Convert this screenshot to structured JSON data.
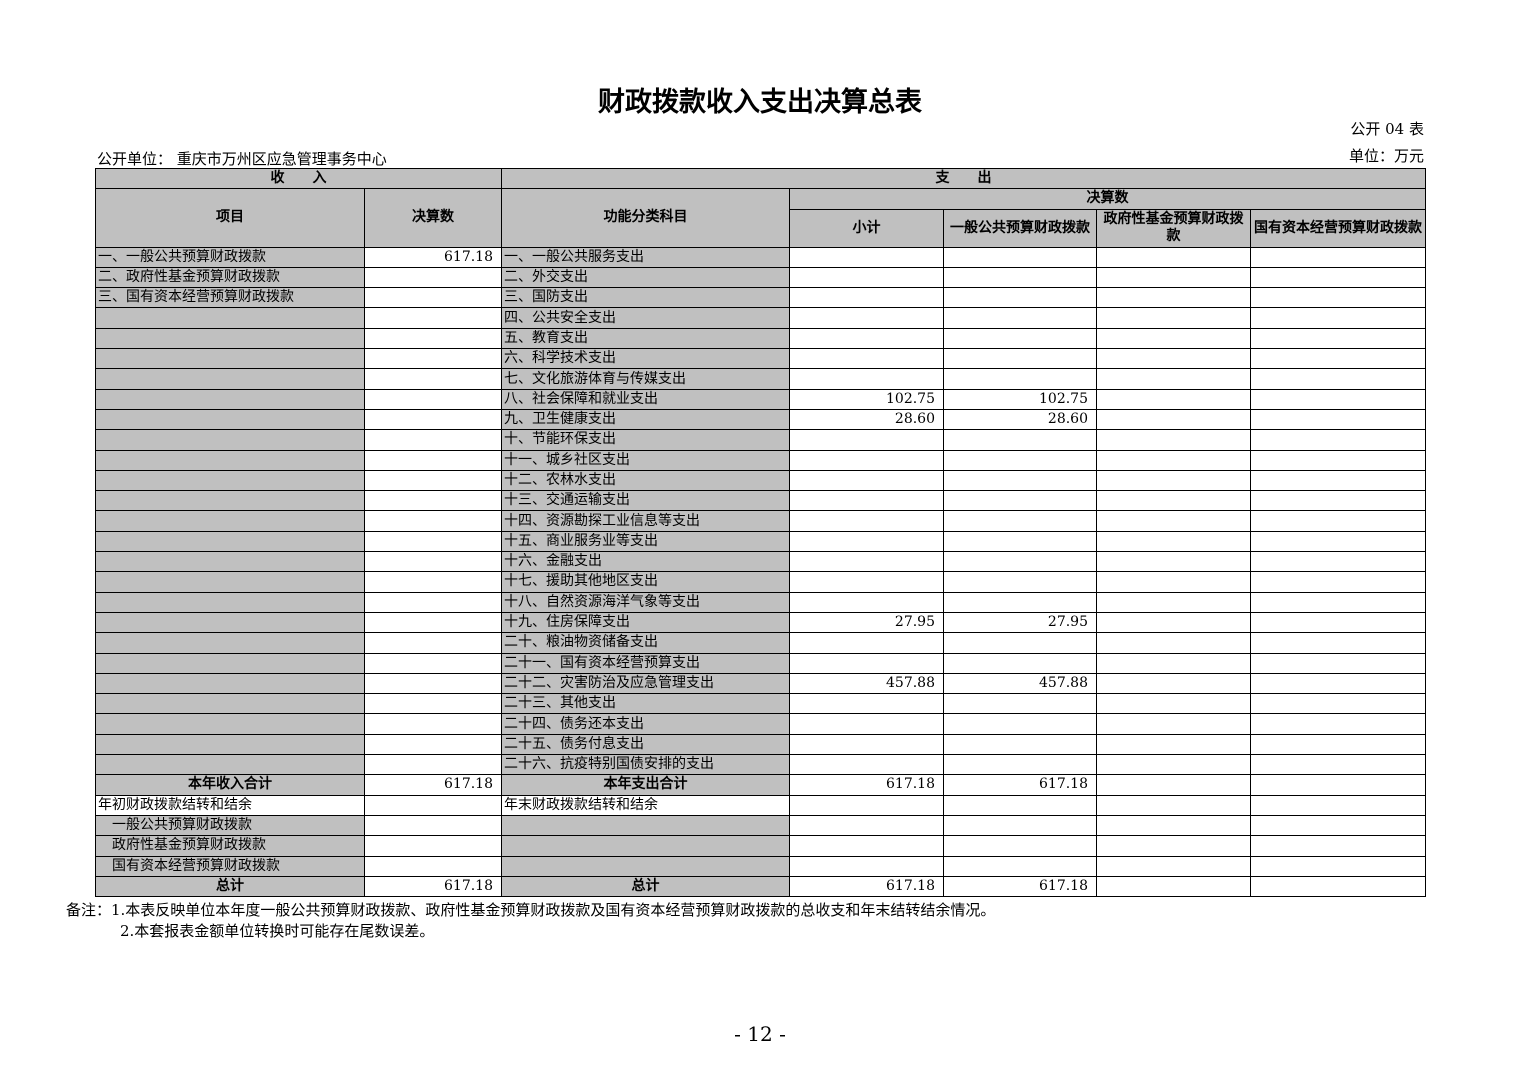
{
  "title": "财政拨款收入支出决算总表",
  "table_code": "公开 04 表",
  "unit": "单位：万元",
  "org": "公开单位：  重庆市万州区应急管理事务中心",
  "headers": {
    "income": "收　　入",
    "expense": "支　　出",
    "item": "项目",
    "amount": "决算数",
    "func": "功能分类科目",
    "final": "决算数",
    "subtotal": "小计",
    "general": "一般公共预算财政拨款",
    "fund": "政府性基金预算财政拨款",
    "state": "国有资本经营预算财政拨款"
  },
  "rows": [
    [
      "一、一般公共预算财政拨款",
      "617.18",
      "一、一般公共服务支出",
      "",
      "",
      "",
      ""
    ],
    [
      "二、政府性基金预算财政拨款",
      "",
      "二、外交支出",
      "",
      "",
      "",
      ""
    ],
    [
      "三、国有资本经营预算财政拨款",
      "",
      "三、国防支出",
      "",
      "",
      "",
      ""
    ],
    [
      "",
      "",
      "四、公共安全支出",
      "",
      "",
      "",
      ""
    ],
    [
      "",
      "",
      "五、教育支出",
      "",
      "",
      "",
      ""
    ],
    [
      "",
      "",
      "六、科学技术支出",
      "",
      "",
      "",
      ""
    ],
    [
      "",
      "",
      "七、文化旅游体育与传媒支出",
      "",
      "",
      "",
      ""
    ],
    [
      "",
      "",
      "八、社会保障和就业支出",
      "102.75",
      "102.75",
      "",
      ""
    ],
    [
      "",
      "",
      "九、卫生健康支出",
      "28.60",
      "28.60",
      "",
      ""
    ],
    [
      "",
      "",
      "十、节能环保支出",
      "",
      "",
      "",
      ""
    ],
    [
      "",
      "",
      "十一、城乡社区支出",
      "",
      "",
      "",
      ""
    ],
    [
      "",
      "",
      "十二、农林水支出",
      "",
      "",
      "",
      ""
    ],
    [
      "",
      "",
      "十三、交通运输支出",
      "",
      "",
      "",
      ""
    ],
    [
      "",
      "",
      "十四、资源勘探工业信息等支出",
      "",
      "",
      "",
      ""
    ],
    [
      "",
      "",
      "十五、商业服务业等支出",
      "",
      "",
      "",
      ""
    ],
    [
      "",
      "",
      "十六、金融支出",
      "",
      "",
      "",
      ""
    ],
    [
      "",
      "",
      "十七、援助其他地区支出",
      "",
      "",
      "",
      ""
    ],
    [
      "",
      "",
      "十八、自然资源海洋气象等支出",
      "",
      "",
      "",
      ""
    ],
    [
      "",
      "",
      "十九、住房保障支出",
      "27.95",
      "27.95",
      "",
      ""
    ],
    [
      "",
      "",
      "二十、粮油物资储备支出",
      "",
      "",
      "",
      ""
    ],
    [
      "",
      "",
      "二十一、国有资本经营预算支出",
      "",
      "",
      "",
      ""
    ],
    [
      "",
      "",
      "二十二、灾害防治及应急管理支出",
      "457.88",
      "457.88",
      "",
      ""
    ],
    [
      "",
      "",
      "二十三、其他支出",
      "",
      "",
      "",
      ""
    ],
    [
      "",
      "",
      "二十四、债务还本支出",
      "",
      "",
      "",
      ""
    ],
    [
      "",
      "",
      "二十五、债务付息支出",
      "",
      "",
      "",
      ""
    ],
    [
      "",
      "",
      "二十六、抗疫特别国债安排的支出",
      "",
      "",
      "",
      ""
    ]
  ],
  "summary": [
    {
      "cells": [
        "本年收入合计",
        "617.18",
        "本年支出合计",
        "617.18",
        "617.18",
        "",
        ""
      ],
      "type": "total"
    },
    {
      "cells": [
        "年初财政拨款结转和结余",
        "",
        "年末财政拨款结转和结余",
        "",
        "",
        "",
        ""
      ],
      "type": "plain"
    },
    {
      "cells": [
        "一般公共预算财政拨款",
        "",
        "",
        "",
        "",
        "",
        ""
      ],
      "type": "sub"
    },
    {
      "cells": [
        "政府性基金预算财政拨款",
        "",
        "",
        "",
        "",
        "",
        ""
      ],
      "type": "sub"
    },
    {
      "cells": [
        "国有资本经营预算财政拨款",
        "",
        "",
        "",
        "",
        "",
        ""
      ],
      "type": "sub"
    },
    {
      "cells": [
        "总计",
        "617.18",
        "总计",
        "617.18",
        "617.18",
        "",
        ""
      ],
      "type": "total"
    }
  ],
  "notes": [
    "备注：1.本表反映单位本年度一般公共预算财政拨款、政府性基金预算财政拨款及国有资本经营预算财政拨款的总收支和年末结转结余情况。",
    "2.本套报表金额单位转换时可能存在尾数误差。"
  ],
  "page_number": "- 12 -"
}
